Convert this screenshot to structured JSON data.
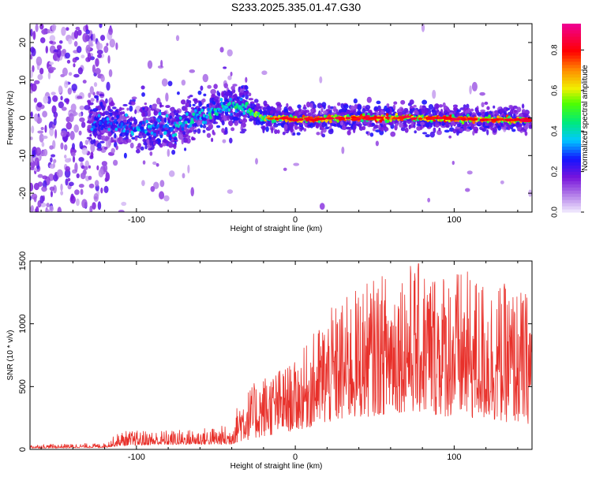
{
  "title": "S233.2025.335.01.47.G30",
  "chart_data": [
    {
      "type": "heatmap",
      "xlabel": "Height of straight line (km)",
      "ylabel": "Frequency (Hz)",
      "xlim": [
        -167,
        149
      ],
      "ylim": [
        -25,
        25
      ],
      "xticks": [
        -100,
        0,
        100
      ],
      "yticks": [
        -20,
        -10,
        0,
        10,
        20
      ],
      "colorbar": {
        "label": "Normalized spectral amplitude",
        "range": [
          0,
          0.93
        ],
        "ticks": [
          0.0,
          0.2,
          0.4,
          0.6,
          0.8
        ],
        "colormap": "rainbow (white-violet-blue-cyan-green-yellow-red-magenta)"
      },
      "ridge": {
        "description": "main spectral trace",
        "points": [
          {
            "x": -120,
            "y": -1.5,
            "amp": 0.35
          },
          {
            "x": -100,
            "y": -2.5,
            "amp": 0.4
          },
          {
            "x": -80,
            "y": -2.5,
            "amp": 0.4
          },
          {
            "x": -60,
            "y": 0,
            "amp": 0.45
          },
          {
            "x": -40,
            "y": 3.5,
            "amp": 0.5
          },
          {
            "x": -30,
            "y": 2,
            "amp": 0.55
          },
          {
            "x": -20,
            "y": 0,
            "amp": 0.7
          },
          {
            "x": 0,
            "y": -0.5,
            "amp": 0.85
          },
          {
            "x": 40,
            "y": 0,
            "amp": 0.85
          },
          {
            "x": 80,
            "y": 0,
            "amp": 0.85
          },
          {
            "x": 120,
            "y": -0.5,
            "amp": 0.8
          },
          {
            "x": 145,
            "y": -0.5,
            "amp": 0.8
          }
        ]
      }
    },
    {
      "type": "line",
      "xlabel": "Height of straight line (km)",
      "ylabel": "SNR (10 * v/v)",
      "xlim": [
        -167,
        149
      ],
      "ylim": [
        0,
        1500
      ],
      "xticks": [
        -100,
        0,
        100
      ],
      "yticks": [
        0,
        500,
        1000,
        1500
      ],
      "color": "#e8302a",
      "envelope": [
        {
          "x": -167,
          "low": 10,
          "high": 40
        },
        {
          "x": -120,
          "low": 15,
          "high": 50
        },
        {
          "x": -110,
          "low": 30,
          "high": 150
        },
        {
          "x": -70,
          "low": 40,
          "high": 160
        },
        {
          "x": -40,
          "low": 40,
          "high": 200
        },
        {
          "x": -35,
          "low": 60,
          "high": 420
        },
        {
          "x": -20,
          "low": 100,
          "high": 600
        },
        {
          "x": 0,
          "low": 150,
          "high": 700
        },
        {
          "x": 20,
          "low": 200,
          "high": 1100
        },
        {
          "x": 40,
          "low": 250,
          "high": 1300
        },
        {
          "x": 70,
          "low": 300,
          "high": 1500
        },
        {
          "x": 100,
          "low": 250,
          "high": 1450
        },
        {
          "x": 149,
          "low": 200,
          "high": 1250
        }
      ]
    }
  ]
}
